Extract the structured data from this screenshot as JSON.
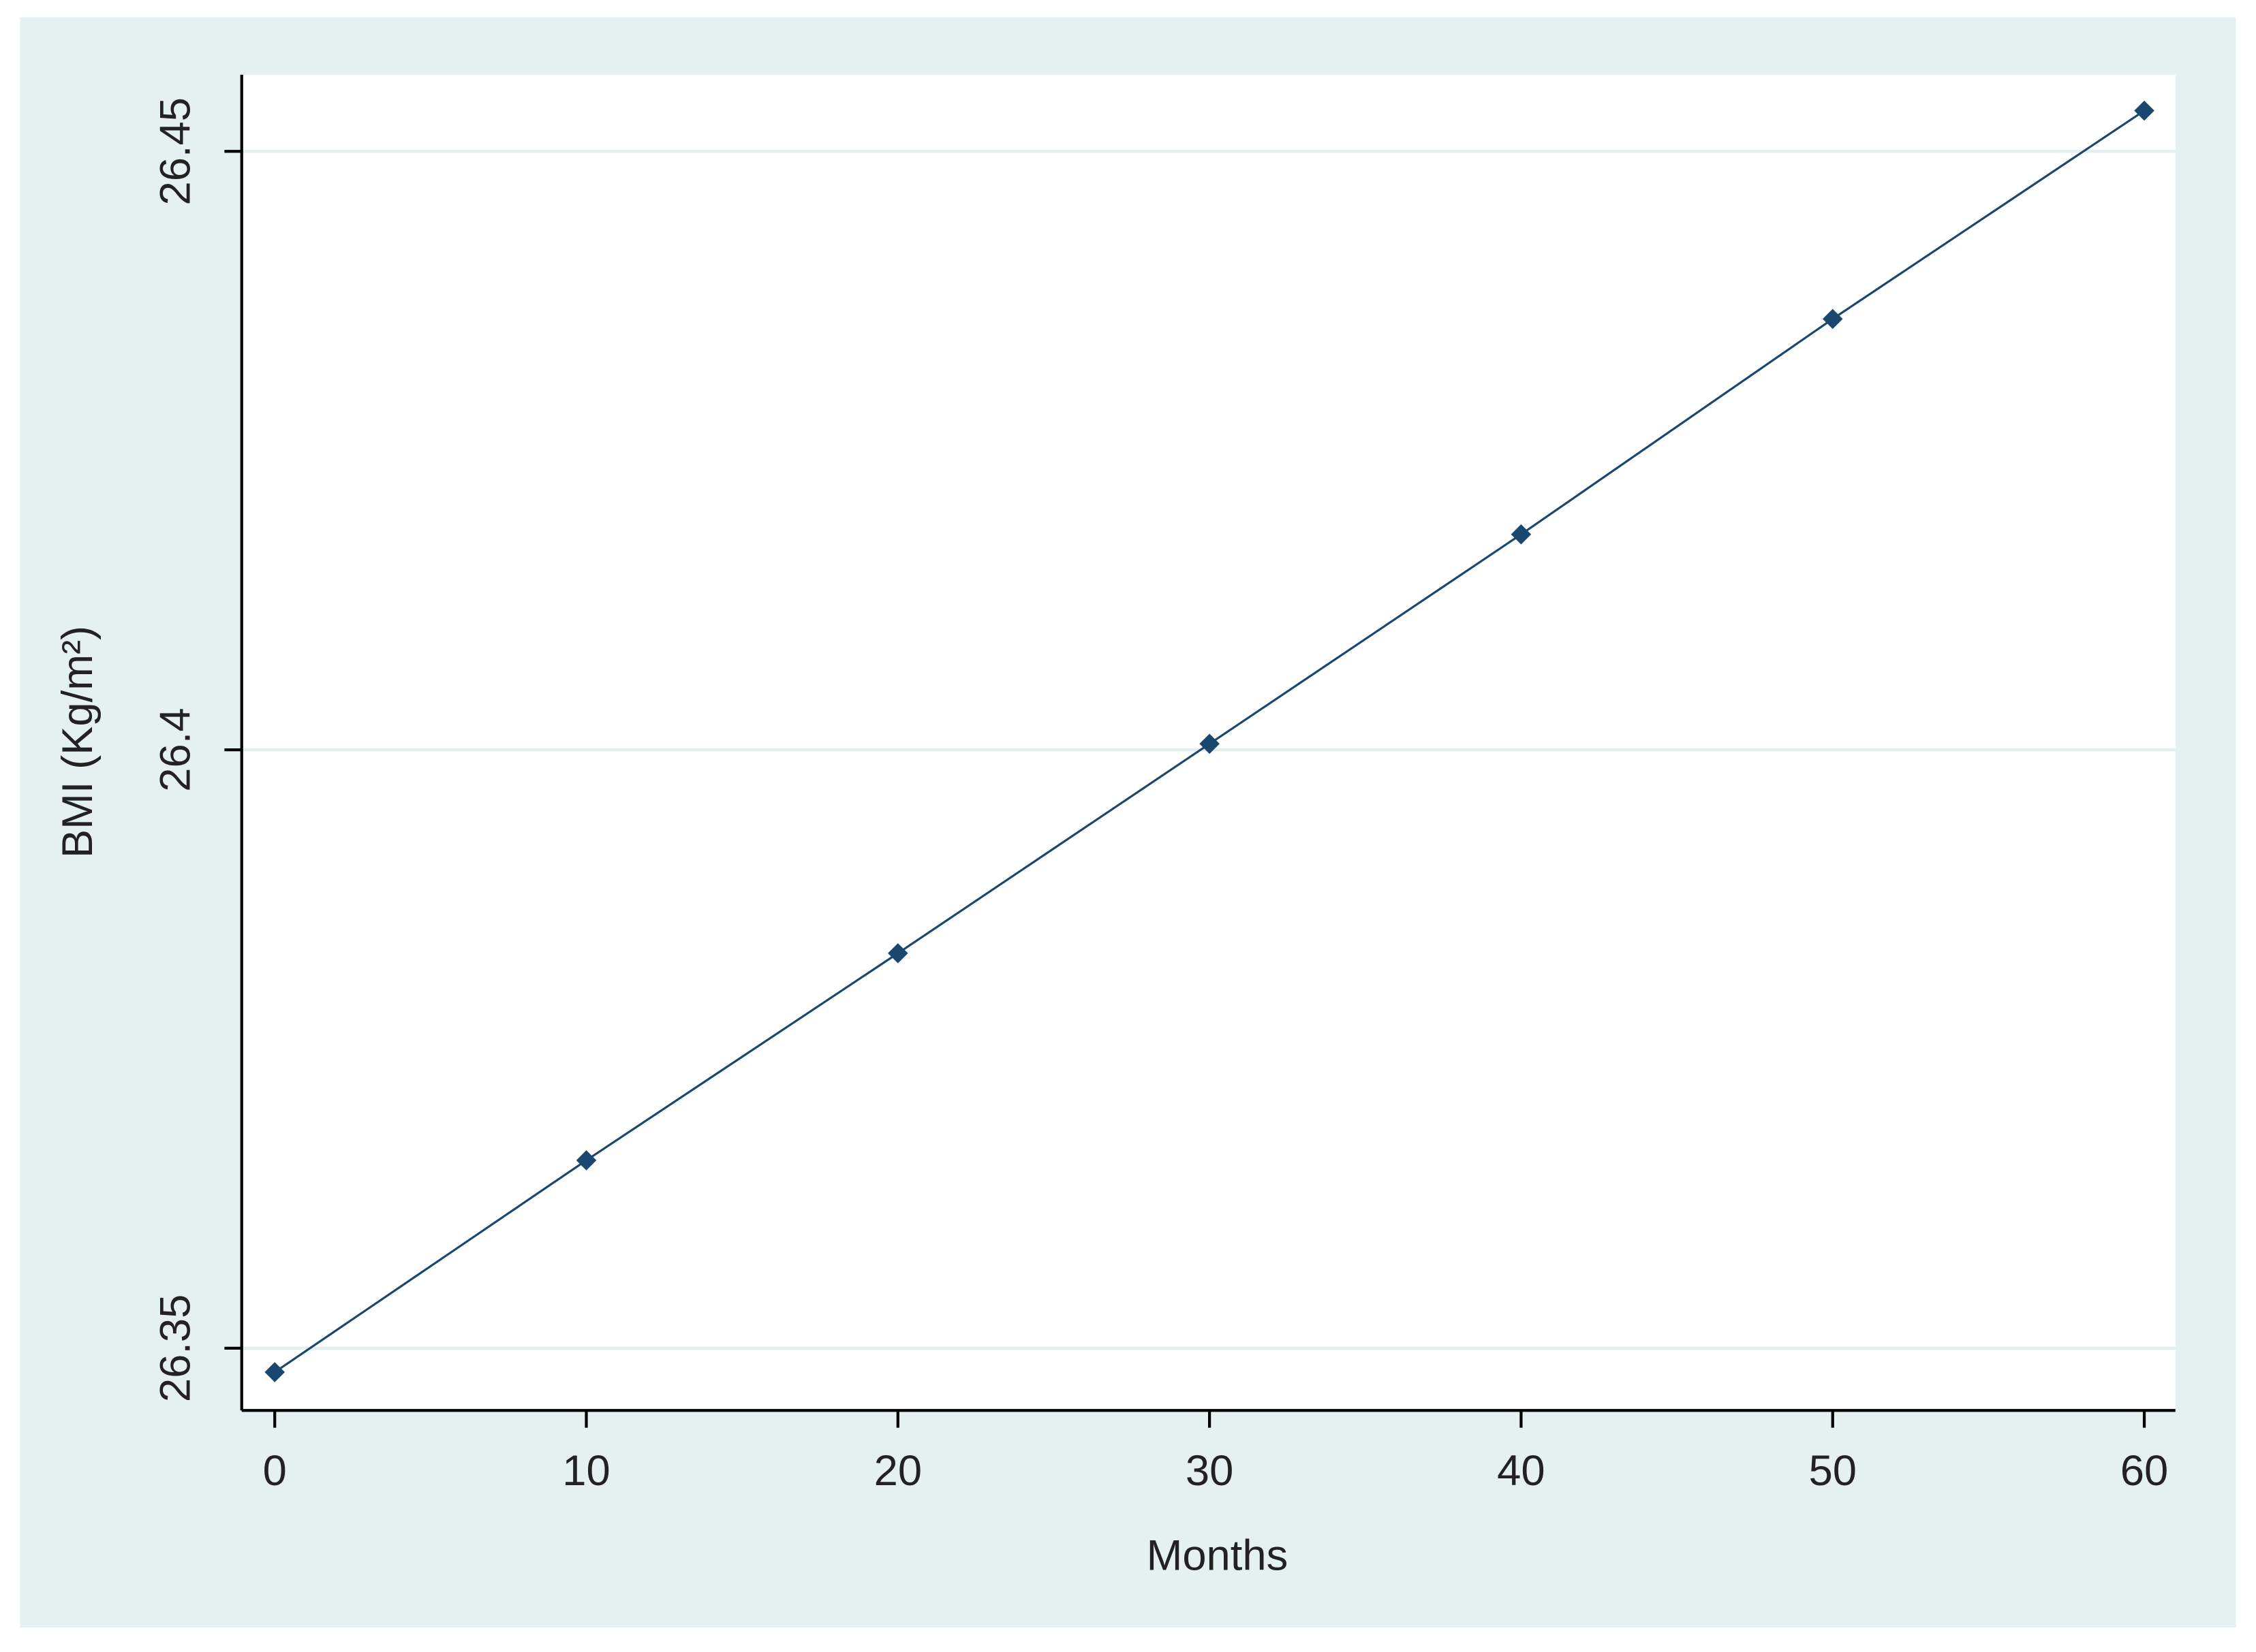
{
  "chart_data": {
    "type": "line",
    "x_label": "Months",
    "y_label": "BMI (Kg/m²)",
    "x": [
      0,
      10,
      20,
      30,
      40,
      50,
      60
    ],
    "values": [
      26.348,
      26.3657,
      26.383,
      26.4005,
      26.418,
      26.436,
      26.4534
    ],
    "color": "#1a476f",
    "xlim": [
      -1.06,
      61.0
    ],
    "ylim": [
      26.3448,
      26.4564
    ],
    "xticks": [
      0,
      10,
      20,
      30,
      40,
      50,
      60
    ],
    "yticks": [
      26.35,
      26.4,
      26.45
    ],
    "grid": true
  }
}
